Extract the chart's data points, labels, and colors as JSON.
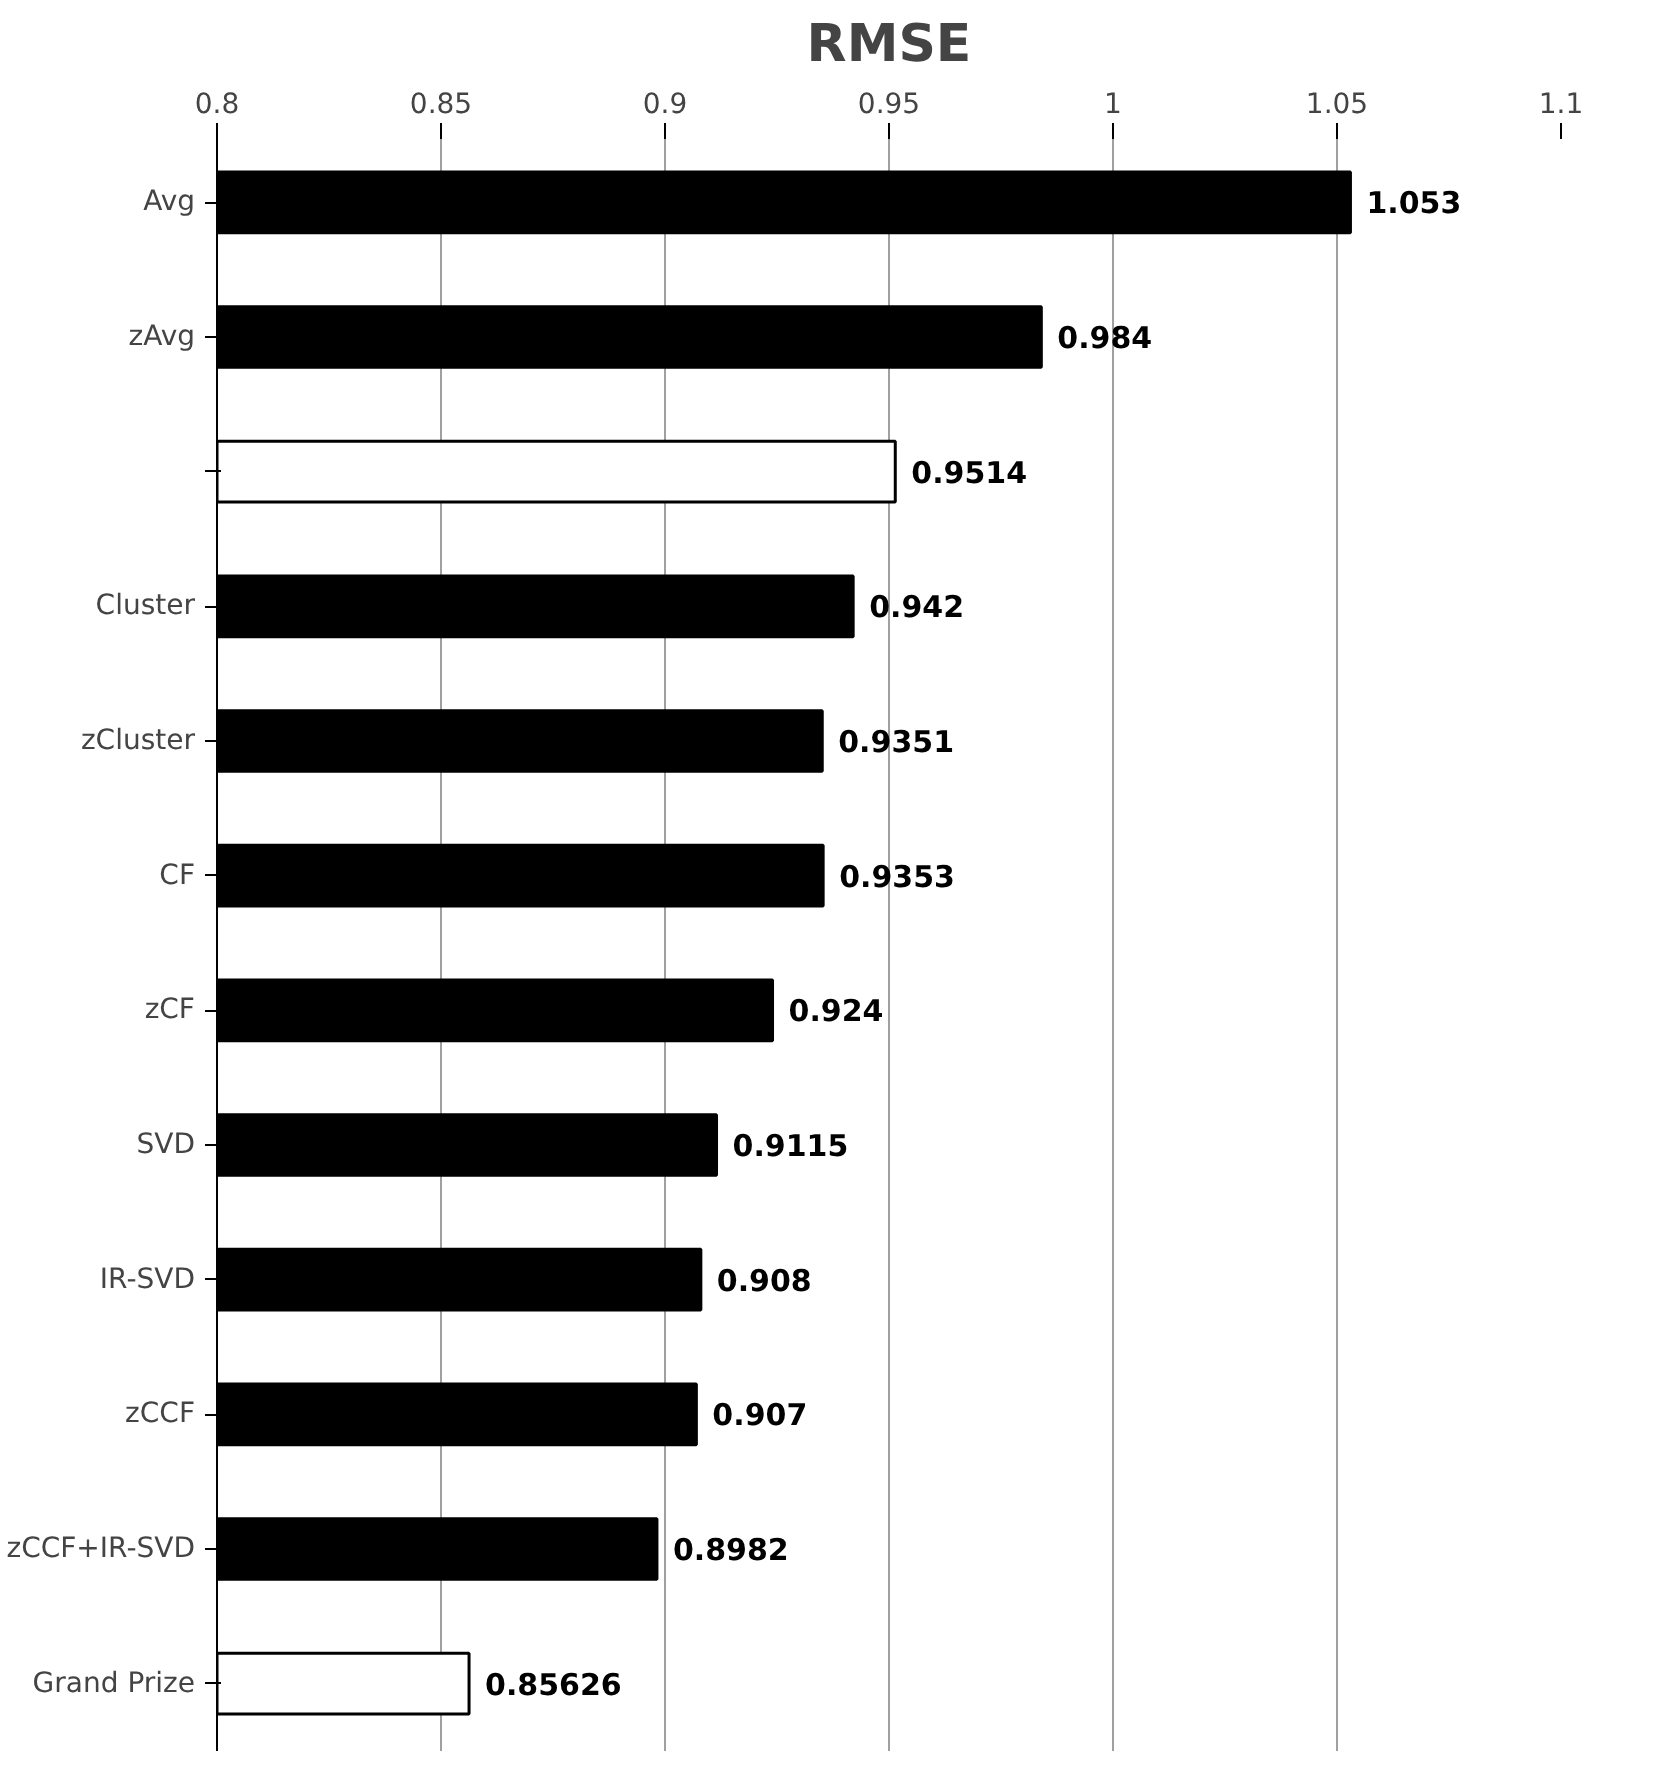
{
  "chart_data": {
    "type": "bar",
    "orientation": "horizontal",
    "title": "RMSE",
    "categories": [
      "Avg",
      "zAvg",
      null,
      "Cluster",
      "zCluster",
      "CF",
      "zCF",
      "SVD",
      "IR-SVD",
      "zCCF",
      "zCCF+IR-SVD",
      "Grand Prize"
    ],
    "values": [
      1.053,
      0.984,
      0.9514,
      0.942,
      0.9351,
      0.9353,
      0.924,
      0.9115,
      0.908,
      0.907,
      0.8982,
      0.85626
    ],
    "colors": [
      "#000000",
      "#000000",
      "#ffffff",
      "#000000",
      "#000000",
      "#000000",
      "#000000",
      "#000000",
      "#000000",
      "#000000",
      "#000000",
      "#ffffff"
    ],
    "xlim": [
      0.8,
      1.1
    ],
    "xticks": [
      0.8,
      0.85,
      0.9,
      0.95,
      1,
      1.05,
      1.1
    ],
    "grid": "x",
    "data_labels": true
  }
}
